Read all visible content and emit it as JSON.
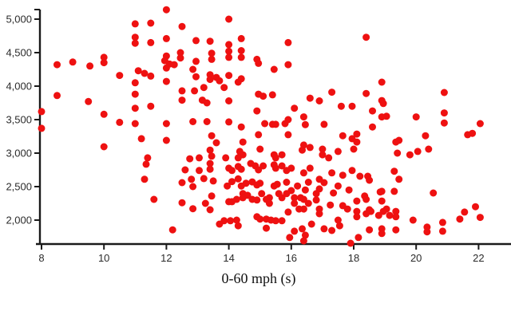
{
  "chart": {
    "chart_data": {
      "type": "scatter",
      "title": "",
      "xlabel": "0-60 mph (s)",
      "ylabel": "",
      "xlim": [
        8,
        23
      ],
      "ylim": [
        1630,
        5150
      ],
      "grid": false,
      "legend": null,
      "x_ticks": [
        8,
        10,
        12,
        14,
        16,
        18,
        20,
        22
      ],
      "y_ticks": [
        {
          "value": 5000,
          "label": "5,000"
        },
        {
          "value": 4500,
          "label": "4,500"
        },
        {
          "value": 4000,
          "label": "4,000"
        },
        {
          "value": 3500,
          "label": "3,500"
        },
        {
          "value": 3000,
          "label": "3,000"
        },
        {
          "value": 2500,
          "label": "2,500"
        },
        {
          "value": 2000,
          "label": "2,000"
        }
      ],
      "marker_color": "#ee1111",
      "axis_color": "#1a1a1a",
      "background_color": "#ffffff",
      "marker_diameter_px": 9,
      "points": [
        [
          12.0,
          5140
        ],
        [
          14.0,
          5000
        ],
        [
          11.5,
          4940
        ],
        [
          11.0,
          4930
        ],
        [
          12.5,
          4890
        ],
        [
          18.4,
          4730
        ],
        [
          11.0,
          4730
        ],
        [
          14.4,
          4710
        ],
        [
          12.0,
          4710
        ],
        [
          12.95,
          4680
        ],
        [
          13.4,
          4670
        ],
        [
          15.9,
          4650
        ],
        [
          11.5,
          4650
        ],
        [
          11.0,
          4640
        ],
        [
          14.0,
          4620
        ],
        [
          14.4,
          4530
        ],
        [
          14.0,
          4520
        ],
        [
          12.45,
          4500
        ],
        [
          13.45,
          4490
        ],
        [
          12.0,
          4450
        ],
        [
          10.0,
          4430
        ],
        [
          14.0,
          4430
        ],
        [
          14.4,
          4430
        ],
        [
          12.45,
          4420
        ],
        [
          13.45,
          4400
        ],
        [
          14.9,
          4400
        ],
        [
          11.95,
          4380
        ],
        [
          12.95,
          4370
        ],
        [
          9.0,
          4360
        ],
        [
          10.0,
          4350
        ],
        [
          14.95,
          4340
        ],
        [
          12.1,
          4330
        ],
        [
          8.5,
          4320
        ],
        [
          12.25,
          4320
        ],
        [
          15.9,
          4320
        ],
        [
          9.55,
          4300
        ],
        [
          12.0,
          4270
        ],
        [
          15.45,
          4250
        ],
        [
          12.85,
          4250
        ],
        [
          11.1,
          4230
        ],
        [
          11.3,
          4190
        ],
        [
          13.4,
          4170
        ],
        [
          10.5,
          4160
        ],
        [
          14.0,
          4160
        ],
        [
          11.5,
          4150
        ],
        [
          12.95,
          4140
        ],
        [
          13.6,
          4130
        ],
        [
          14.4,
          4110
        ],
        [
          13.4,
          4100
        ],
        [
          13.7,
          4080
        ],
        [
          12.0,
          4070
        ],
        [
          18.9,
          4060
        ],
        [
          14.3,
          4060
        ],
        [
          11.0,
          4050
        ],
        [
          13.85,
          3980
        ],
        [
          13.2,
          3980
        ],
        [
          12.5,
          3930
        ],
        [
          12.9,
          3930
        ],
        [
          17.3,
          3910
        ],
        [
          20.9,
          3905
        ],
        [
          18.4,
          3890
        ],
        [
          14.95,
          3880
        ],
        [
          11.0,
          3880
        ],
        [
          15.4,
          3870
        ],
        [
          8.5,
          3860
        ],
        [
          15.1,
          3850
        ],
        [
          16.6,
          3820
        ],
        [
          12.5,
          3790
        ],
        [
          13.15,
          3790
        ],
        [
          18.9,
          3785
        ],
        [
          16.9,
          3780
        ],
        [
          14.0,
          3780
        ],
        [
          9.5,
          3770
        ],
        [
          13.3,
          3750
        ],
        [
          18.95,
          3740
        ],
        [
          17.6,
          3700
        ],
        [
          11.5,
          3700
        ],
        [
          17.95,
          3700
        ],
        [
          11.0,
          3670
        ],
        [
          16.1,
          3670
        ],
        [
          14.9,
          3630
        ],
        [
          18.6,
          3630
        ],
        [
          8.0,
          3620
        ],
        [
          20.9,
          3600
        ],
        [
          10.0,
          3580
        ],
        [
          19.05,
          3550
        ],
        [
          18.9,
          3540
        ],
        [
          16.4,
          3540
        ],
        [
          20.0,
          3540
        ],
        [
          15.9,
          3500
        ],
        [
          13.3,
          3470
        ],
        [
          12.85,
          3470
        ],
        [
          14.0,
          3465
        ],
        [
          10.5,
          3460
        ],
        [
          20.9,
          3450
        ],
        [
          15.15,
          3440
        ],
        [
          11.0,
          3440
        ],
        [
          12.0,
          3440
        ],
        [
          22.05,
          3440
        ],
        [
          15.8,
          3440
        ],
        [
          15.4,
          3430
        ],
        [
          15.5,
          3430
        ],
        [
          17.05,
          3430
        ],
        [
          16.45,
          3425
        ],
        [
          14.4,
          3390
        ],
        [
          18.6,
          3390
        ],
        [
          8.0,
          3370
        ],
        [
          21.8,
          3295
        ],
        [
          18.1,
          3285
        ],
        [
          14.95,
          3275
        ],
        [
          21.65,
          3275
        ],
        [
          15.9,
          3275
        ],
        [
          13.45,
          3260
        ],
        [
          17.65,
          3260
        ],
        [
          20.3,
          3260
        ],
        [
          11.2,
          3215
        ],
        [
          17.95,
          3215
        ],
        [
          12.0,
          3190
        ],
        [
          19.45,
          3190
        ],
        [
          18.1,
          3165
        ],
        [
          19.35,
          3165
        ],
        [
          14.45,
          3165
        ],
        [
          13.6,
          3155
        ],
        [
          16.4,
          3120
        ],
        [
          10.0,
          3095
        ],
        [
          16.6,
          3085
        ],
        [
          15.0,
          3060
        ],
        [
          17.0,
          3060
        ],
        [
          18.0,
          3060
        ],
        [
          20.4,
          3060
        ],
        [
          13.4,
          3045
        ],
        [
          16.35,
          3045
        ],
        [
          14.35,
          3025
        ],
        [
          17.5,
          3025
        ],
        [
          20.05,
          3025
        ],
        [
          19.4,
          3000
        ],
        [
          14.45,
          2975
        ],
        [
          15.45,
          2975
        ],
        [
          15.7,
          2975
        ],
        [
          17.0,
          2975
        ],
        [
          19.8,
          2975
        ],
        [
          13.45,
          2955
        ],
        [
          11.4,
          2930
        ],
        [
          13.05,
          2930
        ],
        [
          13.9,
          2930
        ],
        [
          14.3,
          2930
        ],
        [
          15.5,
          2930
        ],
        [
          17.2,
          2930
        ],
        [
          12.75,
          2915
        ],
        [
          13.4,
          2845
        ],
        [
          14.7,
          2845
        ],
        [
          11.35,
          2835
        ],
        [
          15.45,
          2825
        ],
        [
          14.85,
          2810
        ],
        [
          15.1,
          2810
        ],
        [
          15.7,
          2810
        ],
        [
          14.3,
          2800
        ],
        [
          14.0,
          2775
        ],
        [
          15.5,
          2775
        ],
        [
          16.0,
          2775
        ],
        [
          16.6,
          2775
        ],
        [
          13.4,
          2760
        ],
        [
          14.4,
          2760
        ],
        [
          12.6,
          2750
        ],
        [
          14.95,
          2750
        ],
        [
          13.05,
          2740
        ],
        [
          14.1,
          2740
        ],
        [
          15.85,
          2740
        ],
        [
          17.95,
          2740
        ],
        [
          19.3,
          2730
        ],
        [
          16.4,
          2705
        ],
        [
          17.3,
          2705
        ],
        [
          17.65,
          2670
        ],
        [
          18.2,
          2655
        ],
        [
          18.45,
          2655
        ],
        [
          13.2,
          2620
        ],
        [
          14.3,
          2615
        ],
        [
          11.3,
          2610
        ],
        [
          12.8,
          2610
        ],
        [
          16.9,
          2610
        ],
        [
          19.45,
          2610
        ],
        [
          18.5,
          2595
        ],
        [
          13.5,
          2585
        ],
        [
          14.1,
          2575
        ],
        [
          14.75,
          2570
        ],
        [
          15.85,
          2565
        ],
        [
          16.55,
          2565
        ],
        [
          12.5,
          2560
        ],
        [
          17.05,
          2560
        ],
        [
          14.55,
          2550
        ],
        [
          15.0,
          2550
        ],
        [
          15.55,
          2535
        ],
        [
          14.9,
          2525
        ],
        [
          13.95,
          2510
        ],
        [
          14.4,
          2510
        ],
        [
          15.45,
          2510
        ],
        [
          16.2,
          2510
        ],
        [
          17.5,
          2510
        ],
        [
          12.85,
          2500
        ],
        [
          16.9,
          2465
        ],
        [
          16.45,
          2450
        ],
        [
          17.85,
          2450
        ],
        [
          16.0,
          2440
        ],
        [
          18.9,
          2430
        ],
        [
          19.3,
          2430
        ],
        [
          18.85,
          2420
        ],
        [
          17.35,
          2405
        ],
        [
          20.55,
          2405
        ],
        [
          14.45,
          2395
        ],
        [
          15.05,
          2395
        ],
        [
          15.6,
          2395
        ],
        [
          15.85,
          2395
        ],
        [
          16.8,
          2395
        ],
        [
          14.6,
          2370
        ],
        [
          13.45,
          2360
        ],
        [
          18.35,
          2360
        ],
        [
          14.45,
          2335
        ],
        [
          15.3,
          2335
        ],
        [
          15.7,
          2335
        ],
        [
          16.1,
          2335
        ],
        [
          16.3,
          2335
        ],
        [
          14.25,
          2310
        ],
        [
          14.75,
          2310
        ],
        [
          15.2,
          2310
        ],
        [
          16.4,
          2310
        ],
        [
          11.6,
          2310
        ],
        [
          18.4,
          2310
        ],
        [
          14.9,
          2300
        ],
        [
          16.8,
          2300
        ],
        [
          18.9,
          2285
        ],
        [
          18.1,
          2285
        ],
        [
          14.0,
          2275
        ],
        [
          14.1,
          2275
        ],
        [
          12.5,
          2260
        ],
        [
          13.25,
          2250
        ],
        [
          15.3,
          2250
        ],
        [
          16.1,
          2250
        ],
        [
          16.55,
          2250
        ],
        [
          17.25,
          2225
        ],
        [
          17.65,
          2215
        ],
        [
          21.9,
          2200
        ],
        [
          12.85,
          2170
        ],
        [
          16.4,
          2165
        ],
        [
          16.25,
          2165
        ],
        [
          16.9,
          2165
        ],
        [
          17.8,
          2165
        ],
        [
          19.05,
          2165
        ],
        [
          13.4,
          2155
        ],
        [
          18.5,
          2155
        ],
        [
          18.1,
          2130
        ],
        [
          18.55,
          2130
        ],
        [
          18.95,
          2130
        ],
        [
          19.35,
          2130
        ],
        [
          15.9,
          2120
        ],
        [
          21.55,
          2120
        ],
        [
          16.9,
          2095
        ],
        [
          18.4,
          2095
        ],
        [
          18.8,
          2070
        ],
        [
          19.15,
          2070
        ],
        [
          14.9,
          2050
        ],
        [
          18.1,
          2050
        ],
        [
          19.35,
          2050
        ],
        [
          22.05,
          2040
        ],
        [
          21.4,
          2015
        ],
        [
          15.0,
          2015
        ],
        [
          15.2,
          2015
        ],
        [
          14.25,
          2000
        ],
        [
          15.35,
          2000
        ],
        [
          17.5,
          2000
        ],
        [
          19.9,
          2000
        ],
        [
          13.85,
          1990
        ],
        [
          14.05,
          1990
        ],
        [
          15.5,
          1990
        ],
        [
          15.7,
          1990
        ],
        [
          20.85,
          1965
        ],
        [
          13.7,
          1940
        ],
        [
          16.65,
          1940
        ],
        [
          14.3,
          1915
        ],
        [
          17.55,
          1915
        ],
        [
          20.35,
          1895
        ],
        [
          15.2,
          1880
        ],
        [
          16.35,
          1870
        ],
        [
          17.05,
          1870
        ],
        [
          18.9,
          1870
        ],
        [
          12.2,
          1855
        ],
        [
          18.5,
          1855
        ],
        [
          19.35,
          1855
        ],
        [
          17.3,
          1845
        ],
        [
          16.1,
          1835
        ],
        [
          20.85,
          1835
        ],
        [
          20.35,
          1825
        ],
        [
          18.9,
          1800
        ],
        [
          16.45,
          1775
        ],
        [
          15.95,
          1740
        ],
        [
          18.15,
          1740
        ],
        [
          16.4,
          1690
        ],
        [
          17.9,
          1655
        ]
      ]
    }
  }
}
